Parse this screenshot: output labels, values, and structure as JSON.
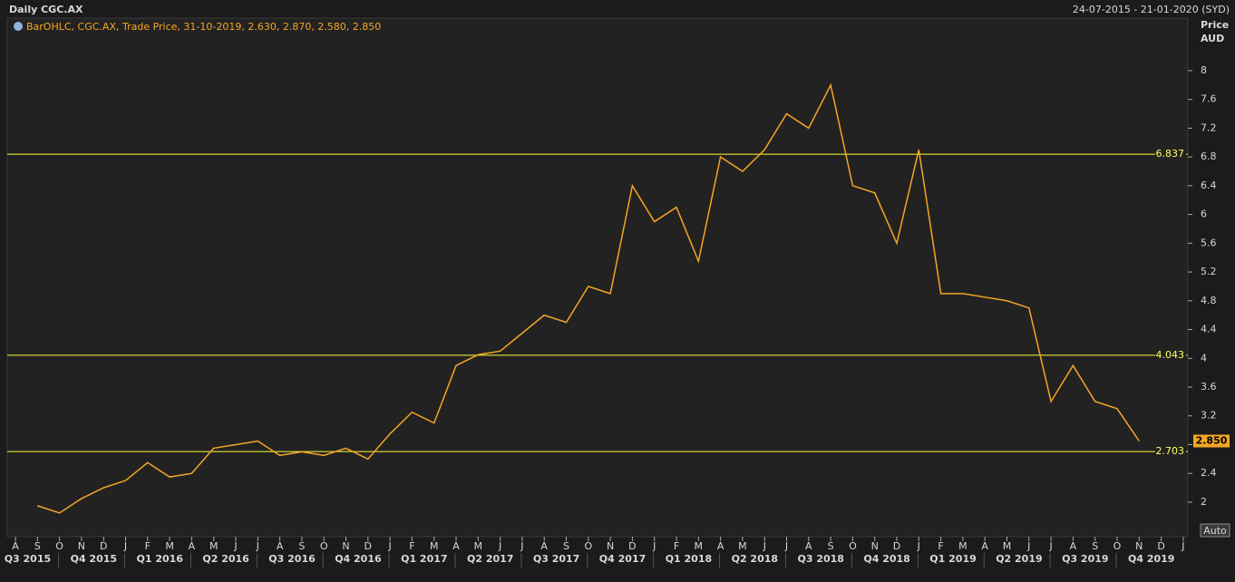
{
  "chart_data": {
    "type": "line",
    "title": "Daily CGC.AX",
    "date_range": "24-07-2015 - 21-01-2020 (SYD)",
    "legend_text": "BarOHLC, CGC.AX, Trade Price, 31-10-2019, 2.630, 2.870, 2.580, 2.850",
    "y_axis_label": "Price",
    "y_axis_unit": "AUD",
    "auto_button": "Auto",
    "x": [
      "2015-08",
      "2015-09",
      "2015-10",
      "2015-11",
      "2015-12",
      "2016-01",
      "2016-02",
      "2016-03",
      "2016-04",
      "2016-05",
      "2016-06",
      "2016-07",
      "2016-08",
      "2016-09",
      "2016-10",
      "2016-11",
      "2016-12",
      "2017-01",
      "2017-02",
      "2017-03",
      "2017-04",
      "2017-05",
      "2017-06",
      "2017-07",
      "2017-08",
      "2017-09",
      "2017-10",
      "2017-11",
      "2017-12",
      "2018-01",
      "2018-02",
      "2018-03",
      "2018-04",
      "2018-05",
      "2018-06",
      "2018-07",
      "2018-08",
      "2018-09",
      "2018-10",
      "2018-11",
      "2018-12",
      "2019-01",
      "2019-02",
      "2019-03",
      "2019-04",
      "2019-05",
      "2019-06",
      "2019-07",
      "2019-08",
      "2019-09",
      "2019-10"
    ],
    "series": [
      {
        "name": "CGC.AX",
        "color": "#f5a623",
        "values": [
          1.95,
          1.85,
          2.05,
          2.2,
          2.3,
          2.55,
          2.35,
          2.4,
          2.75,
          2.8,
          2.85,
          2.65,
          2.7,
          2.65,
          2.75,
          2.6,
          2.95,
          3.25,
          3.1,
          3.9,
          4.05,
          4.1,
          4.35,
          4.6,
          4.5,
          5.0,
          4.9,
          6.4,
          5.9,
          6.1,
          5.35,
          6.8,
          6.6,
          6.9,
          7.4,
          7.2,
          7.8,
          6.4,
          6.3,
          5.6,
          6.9,
          4.9,
          4.9,
          4.85,
          4.8,
          4.7,
          3.4,
          3.9,
          3.4,
          3.3,
          2.85
        ]
      }
    ],
    "ylim": [
      1.52,
      8.73
    ],
    "yticks": [
      2,
      2.4,
      2.8,
      3.2,
      3.6,
      4,
      4.4,
      4.8,
      5.2,
      5.6,
      6,
      6.4,
      6.8,
      7.2,
      7.6,
      8
    ],
    "last_price": {
      "value": 2.85,
      "label": "2.850"
    },
    "levels": [
      6.837,
      4.043,
      2.703
    ],
    "month_labels": [
      "A",
      "S",
      "O",
      "N",
      "D",
      "J",
      "F",
      "M",
      "A",
      "M",
      "J",
      "J",
      "A",
      "S",
      "O",
      "N",
      "D",
      "J",
      "F",
      "M",
      "A",
      "M",
      "J",
      "J",
      "A",
      "S",
      "O",
      "N",
      "D",
      "J",
      "F",
      "M",
      "A",
      "M",
      "J",
      "J",
      "A",
      "S",
      "O",
      "N",
      "D",
      "J",
      "F",
      "M",
      "A",
      "M",
      "J",
      "J",
      "A",
      "S",
      "O",
      "N",
      "D",
      "J"
    ],
    "quarter_labels": [
      "Q3 2015",
      "Q4 2015",
      "Q1 2016",
      "Q2 2016",
      "Q3 2016",
      "Q4 2016",
      "Q1 2017",
      "Q2 2017",
      "Q3 2017",
      "Q4 2017",
      "Q1 2018",
      "Q2 2018",
      "Q3 2018",
      "Q4 2018",
      "Q1 2019",
      "Q2 2019",
      "Q3 2019",
      "Q4 2019"
    ]
  }
}
